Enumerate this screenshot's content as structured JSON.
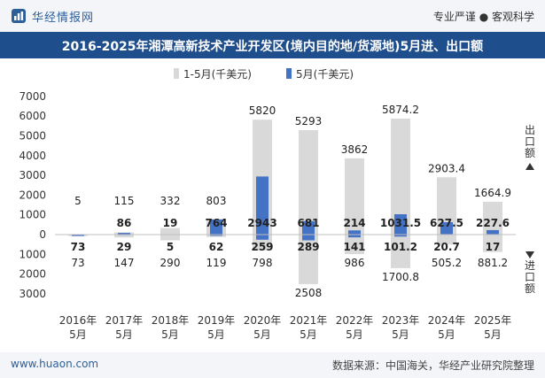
{
  "header": {
    "brand": "华经情报网",
    "tagline": "专业严谨 ● 客观科学"
  },
  "title": "2016-2025年湘潭高新技术产业开发区(境内目的地/货源地)5月进、出口额",
  "footer": {
    "site": "www.huaon.com",
    "source": "数据来源：中国海关，华经产业研究院整理"
  },
  "side_labels": {
    "export": "出口额",
    "import": "进口额"
  },
  "colors": {
    "header_bg": "#1f4e8c",
    "ytd_bar": "#d9d9d9",
    "month_bar": "#4472c4"
  },
  "chart_data": {
    "type": "bar",
    "legend": [
      "1-5月(千美元)",
      "5月(千美元)"
    ],
    "legend_position": "top",
    "categories": [
      "2016年\n5月",
      "2017年\n5月",
      "2018年\n5月",
      "2019年\n5月",
      "2020年\n5月",
      "2021年\n5月",
      "2022年\n5月",
      "2023年\n5月",
      "2024年\n5月",
      "2025年\n5月"
    ],
    "ylim": [
      -3000,
      7000
    ],
    "yticks": [
      -3000,
      -2000,
      -1000,
      0,
      1000,
      2000,
      3000,
      4000,
      5000,
      6000,
      7000
    ],
    "ytick_labels": [
      "3000",
      "2000",
      "1000",
      "0",
      "1000",
      "2000",
      "3000",
      "4000",
      "5000",
      "6000",
      "7000"
    ],
    "series": [
      {
        "name": "1-5月(千美元)",
        "group": "export",
        "values": [
          5,
          115,
          332,
          803,
          5820,
          5293,
          3862,
          5874.2,
          2903.4,
          1664.9
        ],
        "labels": [
          "5",
          "115",
          "332",
          "803",
          "5820",
          "5293",
          "3862",
          "5874.2",
          "2903.4",
          "1664.9"
        ]
      },
      {
        "name": "5月(千美元)",
        "group": "export",
        "values": [
          0,
          86,
          19,
          764,
          2943,
          681,
          214,
          1031.5,
          627.5,
          227.6
        ],
        "labels": [
          "",
          "86",
          "19",
          "764",
          "2943",
          "681",
          "214",
          "1031.5",
          "627.5",
          "227.6"
        ]
      },
      {
        "name": "1-5月(千美元)",
        "group": "import",
        "values": [
          73,
          147,
          290,
          119,
          798,
          2508,
          986,
          1700.8,
          505.2,
          881.2
        ],
        "labels": [
          "73",
          "147",
          "290",
          "119",
          "798",
          "2508",
          "986",
          "1700.8",
          "505.2",
          "881.2"
        ]
      },
      {
        "name": "5月(千美元)",
        "group": "import",
        "values": [
          73,
          29,
          5,
          62,
          259,
          289,
          141,
          101.2,
          20.7,
          17
        ],
        "labels": [
          "73",
          "29",
          "5",
          "62",
          "259",
          "289",
          "141",
          "101.2",
          "20.7",
          "17"
        ]
      }
    ]
  }
}
